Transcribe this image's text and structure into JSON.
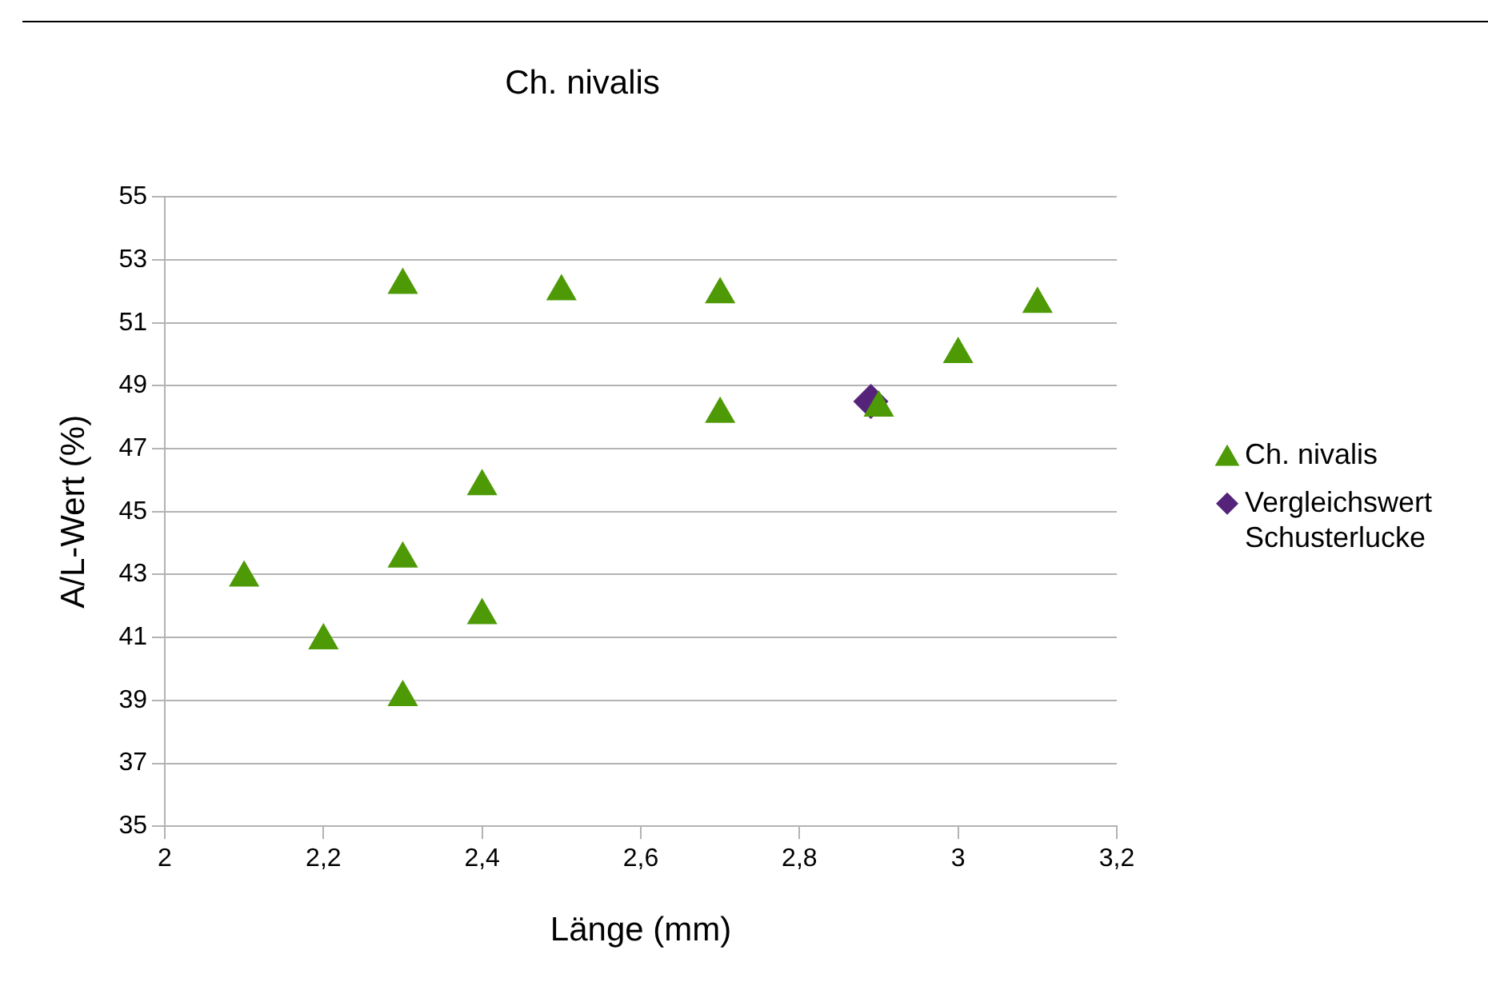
{
  "chart_data": {
    "type": "scatter",
    "title": "Ch. nivalis",
    "xlabel": "Länge (mm)",
    "ylabel": "A/L-Wert (%)",
    "xlim": [
      2,
      3.2
    ],
    "xticks": [
      {
        "value": 2,
        "label": "2"
      },
      {
        "value": 2.2,
        "label": "2,2"
      },
      {
        "value": 2.4,
        "label": "2,4"
      },
      {
        "value": 2.6,
        "label": "2,6"
      },
      {
        "value": 2.8,
        "label": "2,8"
      },
      {
        "value": 3,
        "label": "3"
      },
      {
        "value": 3.2,
        "label": "3,2"
      }
    ],
    "ylim": [
      35,
      55
    ],
    "yticks": [
      35,
      37,
      39,
      41,
      43,
      45,
      47,
      49,
      51,
      53,
      55
    ],
    "grid": "y",
    "legend": "right",
    "series": [
      {
        "name": "Ch. nivalis",
        "color": "#4e9a06",
        "marker": "triangle",
        "x": [
          2.1,
          2.2,
          2.3,
          2.3,
          2.3,
          2.4,
          2.4,
          2.5,
          2.7,
          2.7,
          2.9,
          3,
          3.1
        ],
        "values": [
          42.9,
          40.9,
          52.2,
          43.5,
          39.1,
          45.8,
          41.7,
          52,
          51.9,
          48.1,
          48.3,
          50,
          51.6
        ]
      },
      {
        "name": "Vergleichswert Schusterlucke",
        "color": "#55247a",
        "marker": "diamond",
        "x": [
          2.89
        ],
        "values": [
          48.5
        ]
      }
    ]
  }
}
